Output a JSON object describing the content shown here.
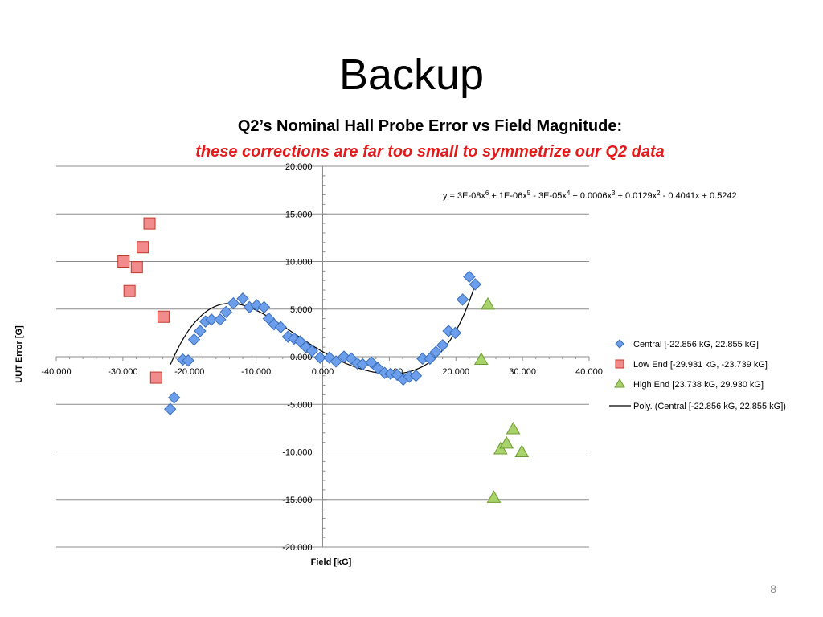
{
  "slide": {
    "title": "Backup",
    "page_number": "8"
  },
  "chart_data": {
    "type": "scatter",
    "title": "Q2’s Nominal Hall Probe Error vs Field Magnitude:",
    "subtitle": "these corrections are far too small to symmetrize our Q2 data",
    "xlabel": "Field [kG]",
    "ylabel": "UUT Error [G]",
    "xlim": [
      -40,
      40
    ],
    "ylim": [
      -20,
      20
    ],
    "x_ticks": [
      "-40.000",
      "-30.000",
      "-20.000",
      "-10.000",
      "0.000",
      "10.000",
      "20.000",
      "30.000",
      "40.000"
    ],
    "y_ticks": [
      "20.000",
      "15.000",
      "10.000",
      "5.000",
      "0.000",
      "-5.000",
      "-10.000",
      "-15.000",
      "-20.000"
    ],
    "x_tick_values": [
      -40,
      -30,
      -20,
      -10,
      0,
      10,
      20,
      30,
      40
    ],
    "y_tick_values": [
      20,
      15,
      10,
      5,
      0,
      -5,
      -10,
      -15,
      -20
    ],
    "grid": "horizontal",
    "legend_position": "right",
    "equation": {
      "prefix": "y = 3E-08x",
      "terms": [
        {
          "sup": "6",
          "text": " + 1E-06x"
        },
        {
          "sup": "5",
          "text": " - 3E-05x"
        },
        {
          "sup": "4",
          "text": " + 0.0006x"
        },
        {
          "sup": "3",
          "text": " + 0.0129x"
        },
        {
          "sup": "2",
          "text": " - 0.4041x + 0.5242"
        }
      ]
    },
    "trendline": {
      "name": "Poly. (Central [-22.856 kG, 22.855 kG])",
      "coefficients": [
        0.5242,
        -0.4041,
        0.0129,
        0.0006,
        -3e-05,
        1e-06,
        3e-08
      ],
      "x_range": [
        -22.856,
        22.855
      ],
      "color": "#000000"
    },
    "series": [
      {
        "name": "Central [-22.856 kG, 22.855 kG]",
        "marker": "diamond",
        "color": "#6d9eeb",
        "stroke": "#3a6fb8",
        "points": [
          [
            -22.9,
            -5.5
          ],
          [
            -22.3,
            -4.3
          ],
          [
            -21.0,
            -0.3
          ],
          [
            -20.2,
            -0.4
          ],
          [
            -19.3,
            1.8
          ],
          [
            -18.4,
            2.7
          ],
          [
            -17.6,
            3.7
          ],
          [
            -16.7,
            3.9
          ],
          [
            -15.4,
            3.9
          ],
          [
            -14.5,
            4.7
          ],
          [
            -13.4,
            5.6
          ],
          [
            -12.0,
            6.1
          ],
          [
            -11.0,
            5.2
          ],
          [
            -9.9,
            5.4
          ],
          [
            -8.8,
            5.2
          ],
          [
            -8.1,
            4.0
          ],
          [
            -7.3,
            3.4
          ],
          [
            -6.3,
            3.1
          ],
          [
            -5.2,
            2.1
          ],
          [
            -4.3,
            1.9
          ],
          [
            -3.4,
            1.6
          ],
          [
            -2.5,
            1.0
          ],
          [
            -1.6,
            0.6
          ],
          [
            -0.4,
            -0.1
          ],
          [
            1.0,
            -0.1
          ],
          [
            2.0,
            -0.5
          ],
          [
            3.2,
            0.0
          ],
          [
            4.3,
            -0.2
          ],
          [
            5.2,
            -0.7
          ],
          [
            6.0,
            -0.8
          ],
          [
            7.3,
            -0.6
          ],
          [
            8.3,
            -1.2
          ],
          [
            9.3,
            -1.7
          ],
          [
            10.2,
            -1.8
          ],
          [
            11.2,
            -1.9
          ],
          [
            12.1,
            -2.4
          ],
          [
            13.0,
            -2.1
          ],
          [
            14.0,
            -2.0
          ],
          [
            15.0,
            -0.2
          ],
          [
            16.1,
            -0.2
          ],
          [
            17.0,
            0.5
          ],
          [
            18.0,
            1.2
          ],
          [
            18.9,
            2.7
          ],
          [
            19.9,
            2.5
          ],
          [
            21.0,
            6.0
          ],
          [
            22.0,
            8.4
          ],
          [
            22.9,
            7.6
          ]
        ]
      },
      {
        "name": "Low End [-29.931 kG, -23.739 kG]",
        "marker": "square",
        "color": "#f28b8b",
        "stroke": "#c0392b",
        "points": [
          [
            -29.9,
            10.0
          ],
          [
            -29.0,
            6.9
          ],
          [
            -27.9,
            9.4
          ],
          [
            -27.0,
            11.5
          ],
          [
            -26.0,
            14.0
          ],
          [
            -25.0,
            -2.2
          ],
          [
            -23.9,
            4.2
          ]
        ]
      },
      {
        "name": "High End [23.738 kG, 29.930 kG]",
        "marker": "triangle",
        "color": "#a8d36b",
        "stroke": "#6f9a33",
        "points": [
          [
            23.8,
            -0.3
          ],
          [
            24.8,
            5.5
          ],
          [
            25.7,
            -14.8
          ],
          [
            26.7,
            -9.7
          ],
          [
            27.6,
            -9.1
          ],
          [
            28.6,
            -7.6
          ],
          [
            29.9,
            -10.0
          ]
        ]
      }
    ]
  }
}
